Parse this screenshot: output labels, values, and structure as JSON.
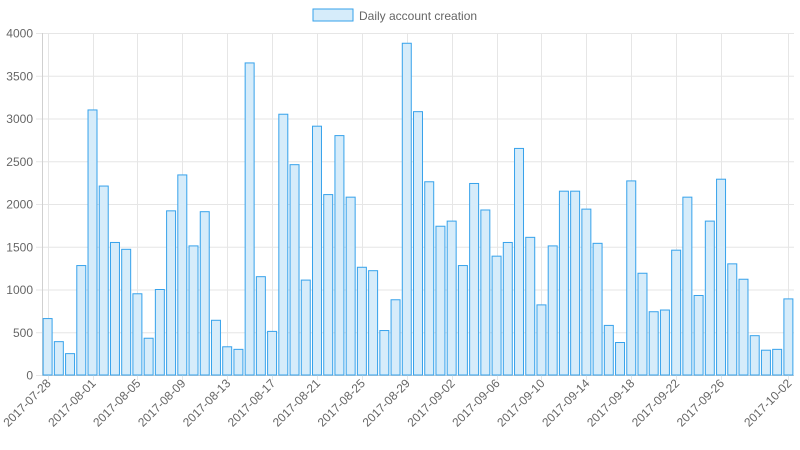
{
  "chart_data": {
    "type": "bar",
    "legend": {
      "position": "top-center",
      "label": "Daily account creation"
    },
    "colors": {
      "bar_fill": "#d6ecfa",
      "bar_stroke": "#36a2eb",
      "grid": "#e6e6e6",
      "text": "#666666"
    },
    "grid": true,
    "ylim": [
      0,
      4000
    ],
    "yticks": [
      0,
      500,
      1000,
      1500,
      2000,
      2500,
      3000,
      3500,
      4000
    ],
    "xtick_labels": [
      "2017-07-28",
      "2017-08-01",
      "2017-08-05",
      "2017-08-09",
      "2017-08-13",
      "2017-08-17",
      "2017-08-21",
      "2017-08-25",
      "2017-08-29",
      "2017-09-02",
      "2017-09-06",
      "2017-09-10",
      "2017-09-14",
      "2017-09-18",
      "2017-09-22",
      "2017-09-26",
      "2017-10-02"
    ],
    "categories": [
      "2017-07-28",
      "2017-07-29",
      "2017-07-30",
      "2017-07-31",
      "2017-08-01",
      "2017-08-02",
      "2017-08-03",
      "2017-08-04",
      "2017-08-05",
      "2017-08-06",
      "2017-08-07",
      "2017-08-08",
      "2017-08-09",
      "2017-08-10",
      "2017-08-11",
      "2017-08-12",
      "2017-08-13",
      "2017-08-14",
      "2017-08-15",
      "2017-08-16",
      "2017-08-17",
      "2017-08-18",
      "2017-08-19",
      "2017-08-20",
      "2017-08-21",
      "2017-08-22",
      "2017-08-23",
      "2017-08-24",
      "2017-08-25",
      "2017-08-26",
      "2017-08-27",
      "2017-08-28",
      "2017-08-29",
      "2017-08-30",
      "2017-08-31",
      "2017-09-01",
      "2017-09-02",
      "2017-09-03",
      "2017-09-04",
      "2017-09-05",
      "2017-09-06",
      "2017-09-07",
      "2017-09-08",
      "2017-09-09",
      "2017-09-10",
      "2017-09-11",
      "2017-09-12",
      "2017-09-13",
      "2017-09-14",
      "2017-09-15",
      "2017-09-16",
      "2017-09-17",
      "2017-09-18",
      "2017-09-19",
      "2017-09-20",
      "2017-09-21",
      "2017-09-22",
      "2017-09-23",
      "2017-09-24",
      "2017-09-25",
      "2017-09-26",
      "2017-09-27",
      "2017-09-28",
      "2017-09-29",
      "2017-09-30",
      "2017-10-01",
      "2017-10-02"
    ],
    "series": [
      {
        "name": "Daily account creation",
        "values": [
          660,
          390,
          250,
          1280,
          3100,
          2210,
          1550,
          1470,
          950,
          430,
          1000,
          1920,
          2340,
          1510,
          1910,
          640,
          330,
          300,
          3650,
          1150,
          510,
          3050,
          2460,
          1110,
          2910,
          2110,
          2800,
          2080,
          1260,
          1220,
          520,
          880,
          3880,
          3080,
          2260,
          1740,
          1800,
          1280,
          2240,
          1930,
          1390,
          1550,
          2650,
          1610,
          820,
          1510,
          2150,
          2150,
          1940,
          1540,
          580,
          380,
          2270,
          1190,
          740,
          760,
          1460,
          2080,
          930,
          1800,
          2290,
          1300,
          1120,
          460,
          290,
          300,
          890
        ]
      }
    ]
  }
}
